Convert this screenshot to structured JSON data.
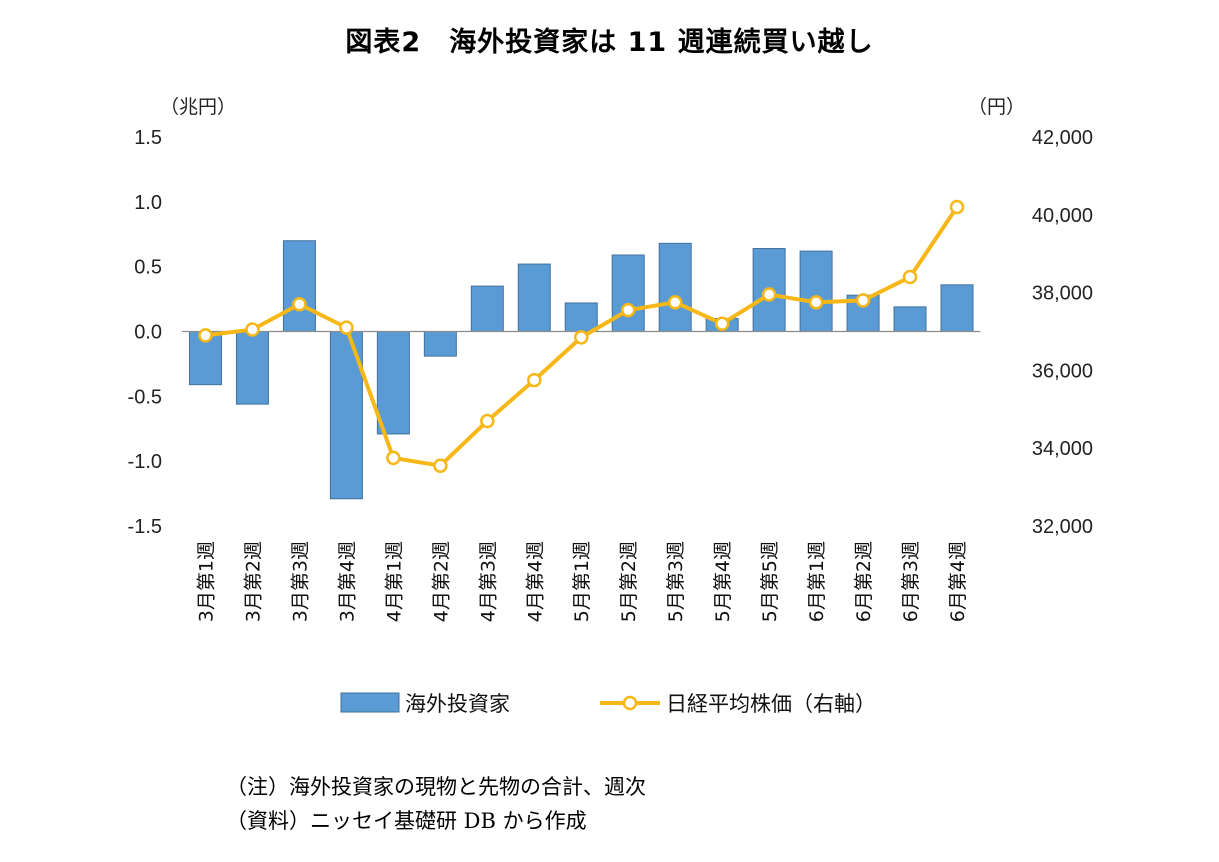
{
  "chart_data": {
    "type": "bar+line",
    "title": "図表2　海外投資家は 11 週連続買い越し",
    "left_axis": {
      "unit": "（兆円）",
      "ylim": [
        -1.5,
        1.5
      ],
      "ticks": [
        "1.5",
        "1.0",
        "0.5",
        "0.0",
        "-0.5",
        "-1.0",
        "-1.5"
      ],
      "tick_values": [
        1.5,
        1.0,
        0.5,
        0.0,
        -0.5,
        -1.0,
        -1.5
      ]
    },
    "right_axis": {
      "unit": "（円）",
      "ylim": [
        32000,
        42000
      ],
      "ticks": [
        "42,000",
        "40,000",
        "38,000",
        "36,000",
        "34,000",
        "32,000"
      ],
      "tick_values": [
        42000,
        40000,
        38000,
        36000,
        34000,
        32000
      ]
    },
    "categories": [
      "3月第1週",
      "3月第2週",
      "3月第3週",
      "3月第4週",
      "4月第1週",
      "4月第2週",
      "4月第3週",
      "4月第4週",
      "5月第1週",
      "5月第2週",
      "5月第3週",
      "5月第4週",
      "5月第5週",
      "6月第1週",
      "6月第2週",
      "6月第3週",
      "6月第4週"
    ],
    "series": [
      {
        "name": "海外投資家",
        "type": "bar",
        "axis": "left",
        "color": "#5b9bd5",
        "values": [
          -0.41,
          -0.56,
          0.7,
          -1.29,
          -0.79,
          -0.19,
          0.35,
          0.52,
          0.22,
          0.59,
          0.68,
          0.1,
          0.64,
          0.62,
          0.28,
          0.19,
          0.36
        ]
      },
      {
        "name": "日経平均株価（右軸）",
        "type": "line",
        "axis": "right",
        "color": "#f6b717",
        "values": [
          36900,
          37050,
          37700,
          37100,
          33750,
          33550,
          34700,
          35750,
          36850,
          37550,
          37750,
          37200,
          37950,
          37750,
          37800,
          38400,
          40200
        ]
      }
    ],
    "legend_position": "bottom",
    "grid": false
  },
  "notes": [
    "（注）海外投資家の現物と先物の合計、週次",
    "（資料）ニッセイ基礎研 DB から作成"
  ]
}
